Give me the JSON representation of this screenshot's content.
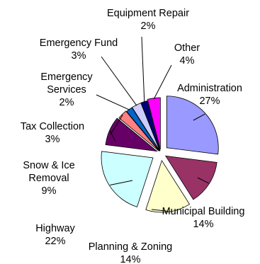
{
  "chart_data": {
    "type": "pie",
    "exploded": true,
    "legend": "none",
    "slices": [
      {
        "name": "Administration",
        "label": "Administration",
        "value_label": "27%",
        "value": 27,
        "color": "#9999ff"
      },
      {
        "name": "Municipal Building",
        "label": "Municipal Building",
        "value_label": "14%",
        "value": 14,
        "color": "#993366"
      },
      {
        "name": "Planning & Zoning",
        "label": "Planning & Zoning",
        "value_label": "14%",
        "value": 14,
        "color": "#ffffcc"
      },
      {
        "name": "Highway",
        "label": "Highway",
        "value_label": "22%",
        "value": 22,
        "color": "#ccffff"
      },
      {
        "name": "Snow & Ice Removal",
        "label": "Snow & Ice\nRemoval",
        "value_label": "9%",
        "value": 9,
        "color": "#660066"
      },
      {
        "name": "Tax Collection",
        "label": "Tax Collection",
        "value_label": "3%",
        "value": 3,
        "color": "#ff8080"
      },
      {
        "name": "Emergency Services",
        "label": "Emergency\nServices",
        "value_label": "2%",
        "value": 2,
        "color": "#0066cc"
      },
      {
        "name": "Emergency Fund",
        "label": "Emergency Fund",
        "value_label": "3%",
        "value": 3,
        "color": "#ccccff"
      },
      {
        "name": "Equipment Repair",
        "label": "Equipment Repair",
        "value_label": "2%",
        "value": 2,
        "color": "#000080"
      },
      {
        "name": "Other",
        "label": "Other",
        "value_label": "4%",
        "value": 4,
        "color": "#ff00ff"
      }
    ]
  }
}
